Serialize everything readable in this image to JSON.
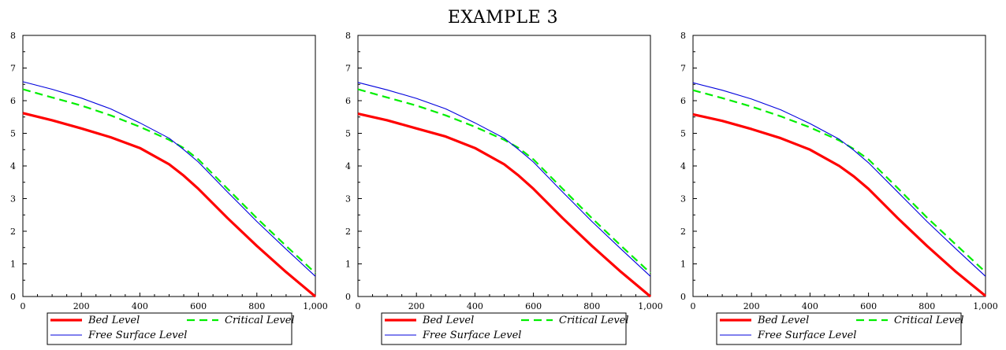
{
  "figure_title": "EXAMPLE 3",
  "chart_data": [
    {
      "type": "line",
      "xlim": [
        0,
        1000
      ],
      "ylim": [
        0,
        8
      ],
      "x_ticks": [
        0,
        200,
        400,
        600,
        800,
        1000
      ],
      "x_tick_labels": [
        "0",
        "200",
        "400",
        "600",
        "800",
        "1,000"
      ],
      "y_ticks": [
        0,
        1,
        2,
        3,
        4,
        5,
        6,
        7,
        8
      ],
      "y_tick_labels": [
        "0",
        "1",
        "2",
        "3",
        "4",
        "5",
        "6",
        "7",
        "8"
      ],
      "grid": false,
      "legend_position": "bottom",
      "series": [
        {
          "name": "Bed Level",
          "color": "#ff0000",
          "style": "solid-thick",
          "x": [
            0,
            100,
            200,
            300,
            400,
            500,
            550,
            600,
            700,
            800,
            900,
            1000
          ],
          "y": [
            5.62,
            5.4,
            5.15,
            4.88,
            4.55,
            4.05,
            3.7,
            3.3,
            2.4,
            1.55,
            0.75,
            0.0
          ]
        },
        {
          "name": "Critical Level",
          "color": "#00ee00",
          "style": "dashed",
          "x": [
            0,
            100,
            200,
            300,
            400,
            500,
            550,
            600,
            700,
            800,
            900,
            1000
          ],
          "y": [
            6.35,
            6.1,
            5.85,
            5.55,
            5.2,
            4.8,
            4.55,
            4.2,
            3.3,
            2.4,
            1.55,
            0.72
          ]
        },
        {
          "name": "Free Surface Level",
          "color": "#0000dd",
          "style": "solid-thin",
          "x": [
            0,
            100,
            200,
            300,
            400,
            500,
            550,
            600,
            700,
            800,
            900,
            1000
          ],
          "y": [
            6.58,
            6.35,
            6.08,
            5.75,
            5.32,
            4.85,
            4.5,
            4.12,
            3.2,
            2.3,
            1.45,
            0.62
          ]
        }
      ]
    },
    {
      "type": "line",
      "xlim": [
        0,
        1000
      ],
      "ylim": [
        0,
        8
      ],
      "x_ticks": [
        0,
        200,
        400,
        600,
        800,
        1000
      ],
      "x_tick_labels": [
        "0",
        "200",
        "400",
        "600",
        "800",
        "1,000"
      ],
      "y_ticks": [
        0,
        1,
        2,
        3,
        4,
        5,
        6,
        7,
        8
      ],
      "y_tick_labels": [
        "0",
        "1",
        "2",
        "3",
        "4",
        "5",
        "6",
        "7",
        "8"
      ],
      "grid": false,
      "legend_position": "bottom",
      "series": [
        {
          "name": "Bed Level",
          "color": "#ff0000",
          "style": "solid-thick",
          "x": [
            0,
            100,
            200,
            300,
            400,
            500,
            550,
            600,
            700,
            800,
            900,
            1000
          ],
          "y": [
            5.6,
            5.4,
            5.15,
            4.9,
            4.55,
            4.05,
            3.7,
            3.3,
            2.4,
            1.55,
            0.75,
            0.0
          ]
        },
        {
          "name": "Critical Level",
          "color": "#00ee00",
          "style": "dashed",
          "x": [
            0,
            100,
            200,
            300,
            400,
            500,
            550,
            600,
            700,
            800,
            900,
            1000
          ],
          "y": [
            6.35,
            6.1,
            5.85,
            5.55,
            5.2,
            4.8,
            4.55,
            4.2,
            3.3,
            2.4,
            1.55,
            0.72
          ]
        },
        {
          "name": "Free Surface Level",
          "color": "#0000dd",
          "style": "solid-thin",
          "x": [
            0,
            100,
            200,
            300,
            400,
            500,
            550,
            600,
            700,
            800,
            900,
            1000
          ],
          "y": [
            6.56,
            6.33,
            6.07,
            5.75,
            5.32,
            4.85,
            4.5,
            4.12,
            3.2,
            2.3,
            1.45,
            0.62
          ]
        }
      ]
    },
    {
      "type": "line",
      "xlim": [
        0,
        1000
      ],
      "ylim": [
        0,
        8
      ],
      "x_ticks": [
        0,
        200,
        400,
        600,
        800,
        1000
      ],
      "x_tick_labels": [
        "0",
        "200",
        "400",
        "600",
        "800",
        "1,000"
      ],
      "y_ticks": [
        0,
        1,
        2,
        3,
        4,
        5,
        6,
        7,
        8
      ],
      "y_tick_labels": [
        "0",
        "1",
        "2",
        "3",
        "4",
        "5",
        "6",
        "7",
        "8"
      ],
      "grid": false,
      "legend_position": "bottom",
      "series": [
        {
          "name": "Bed Level",
          "color": "#ff0000",
          "style": "solid-thick",
          "x": [
            0,
            100,
            200,
            300,
            400,
            500,
            550,
            600,
            700,
            800,
            900,
            1000
          ],
          "y": [
            5.58,
            5.38,
            5.13,
            4.85,
            4.5,
            4.0,
            3.68,
            3.3,
            2.4,
            1.55,
            0.75,
            0.02
          ]
        },
        {
          "name": "Critical Level",
          "color": "#00ee00",
          "style": "dashed",
          "x": [
            0,
            100,
            200,
            300,
            400,
            500,
            550,
            600,
            700,
            800,
            900,
            1000
          ],
          "y": [
            6.32,
            6.08,
            5.82,
            5.52,
            5.18,
            4.78,
            4.52,
            4.2,
            3.32,
            2.42,
            1.58,
            0.75
          ]
        },
        {
          "name": "Free Surface Level",
          "color": "#0000dd",
          "style": "solid-thin",
          "x": [
            0,
            100,
            200,
            300,
            400,
            500,
            550,
            600,
            700,
            800,
            900,
            1000
          ],
          "y": [
            6.55,
            6.32,
            6.05,
            5.72,
            5.3,
            4.82,
            4.48,
            4.1,
            3.2,
            2.3,
            1.45,
            0.62
          ]
        }
      ]
    }
  ]
}
